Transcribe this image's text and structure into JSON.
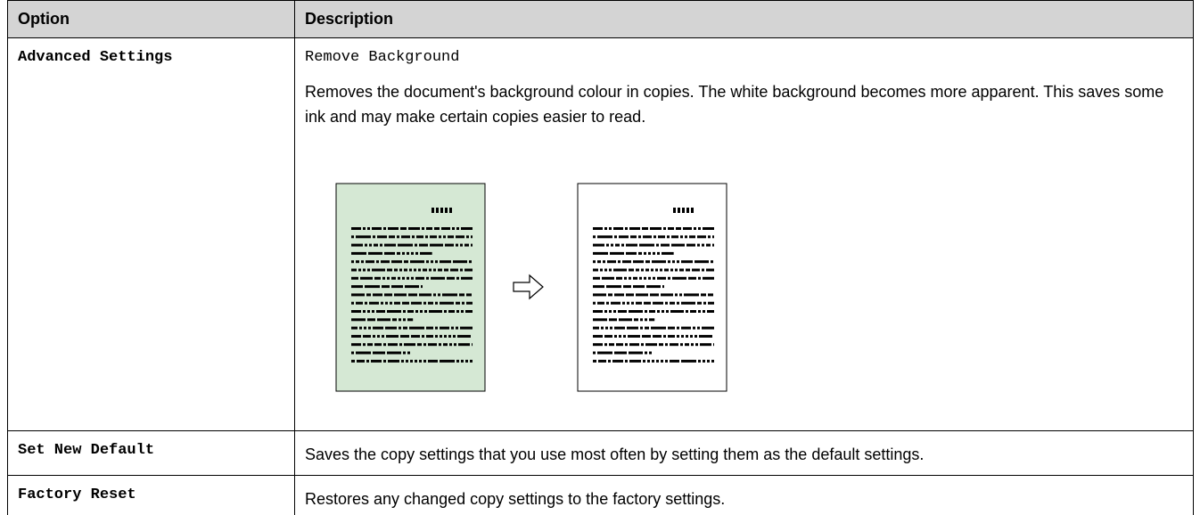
{
  "table": {
    "header": [
      "Option",
      "Description"
    ],
    "rows": [
      {
        "option": "Advanced Settings",
        "setting": "Remove Background",
        "description": "Removes the document's background colour in copies. The white background becomes more apparent. This saves some ink and may make certain copies easier to read."
      },
      {
        "option": "Set New Default",
        "description": "Saves the copy settings that you use most often by setting them as the default settings."
      },
      {
        "option": "Factory Reset",
        "description": "Restores any changed copy settings to the factory settings."
      }
    ]
  }
}
